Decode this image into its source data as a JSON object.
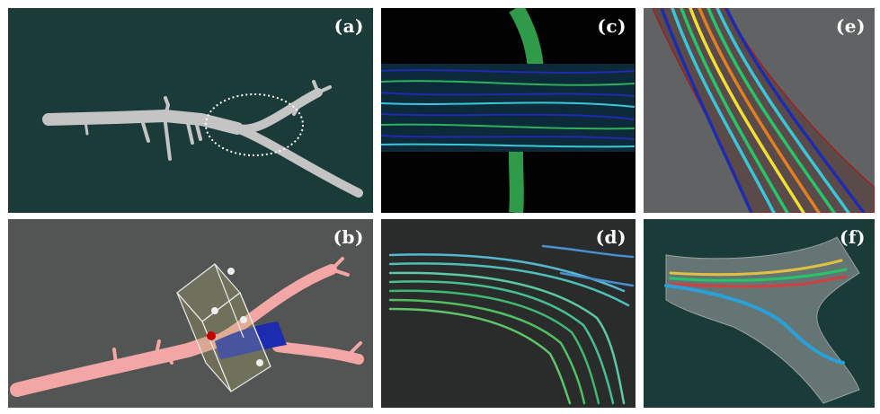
{
  "panels": [
    {
      "id": "a",
      "label": "(a)",
      "background": "#1b3b38"
    },
    {
      "id": "b",
      "label": "(b)",
      "background": "#535454"
    },
    {
      "id": "c",
      "label": "(c)",
      "background": "#020202"
    },
    {
      "id": "d",
      "label": "(d)",
      "background": "#2a2c2c"
    },
    {
      "id": "e",
      "label": "(e)",
      "background": "#616263"
    },
    {
      "id": "f",
      "label": "(f)",
      "background": "#1b3b38"
    }
  ],
  "colors": {
    "vessel_gray": "#c8c8c8",
    "vessel_pink": "#f2a3a3",
    "mesh_blue": "#1c2bb0",
    "marker_red": "#c40000",
    "stream_green": "#27c56a",
    "stream_cyan": "#37c7d8",
    "stream_yellow": "#f0e030",
    "mesh_red": "#a02020"
  }
}
